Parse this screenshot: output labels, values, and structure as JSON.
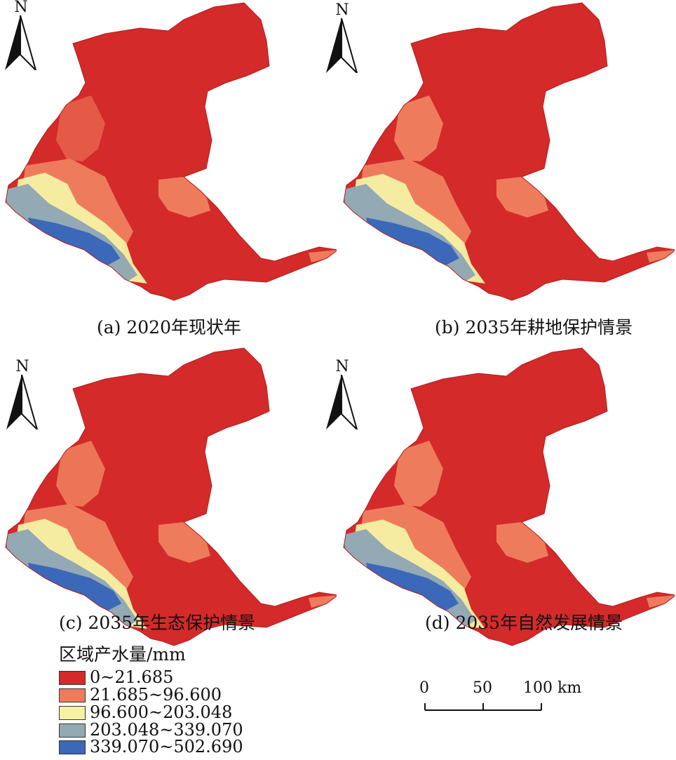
{
  "north_label": "N",
  "panels": [
    {
      "id": "a",
      "caption": "(a) 2020年现状年"
    },
    {
      "id": "b",
      "caption": "(b) 2035年耕地保护情景"
    },
    {
      "id": "c",
      "caption": "(c) 2035年生态保护情景"
    },
    {
      "id": "d",
      "caption": "(d) 2035年自然发展情景"
    }
  ],
  "legend": {
    "title": "区域产水量/mm",
    "classes": [
      {
        "label": "0~21.685",
        "color": "#d42a2a"
      },
      {
        "label": "21.685~96.600",
        "color": "#ee7c5c"
      },
      {
        "label": "96.600~203.048",
        "color": "#f6f2a4"
      },
      {
        "label": "203.048~339.070",
        "color": "#93a9b4"
      },
      {
        "label": "339.070~502.690",
        "color": "#3b68b8"
      }
    ]
  },
  "scale_bar": {
    "ticks": [
      "0",
      "50",
      "100 km"
    ]
  }
}
